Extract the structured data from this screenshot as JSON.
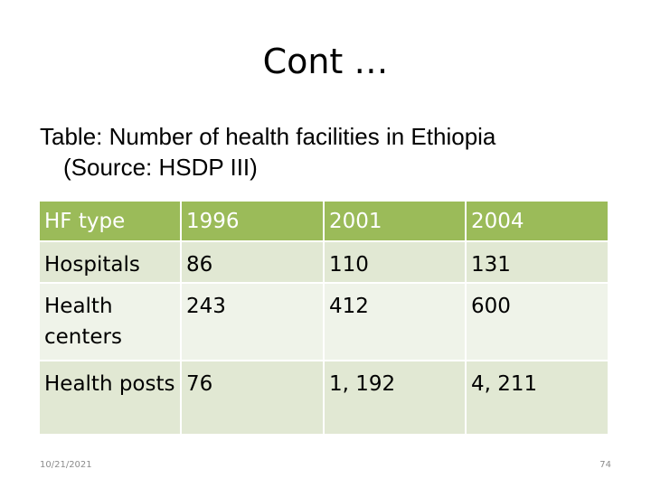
{
  "slide": {
    "title": "Cont …",
    "caption_line1": "Table: Number of health facilities in Ethiopia",
    "caption_line2": "(Source: HSDP III)"
  },
  "table": {
    "headers": [
      "HF type",
      "1996",
      "2001",
      "2004"
    ],
    "rows": [
      [
        "Hospitals",
        "86",
        "110",
        "131"
      ],
      [
        "Health centers",
        "243",
        "412",
        "600"
      ],
      [
        "Health posts",
        "76",
        "1, 192",
        "4, 211"
      ]
    ]
  },
  "footer": {
    "date": "10/21/2021",
    "page_number": "74"
  },
  "colors": {
    "header_bg": "#9bbb59",
    "row_dark": "#e1e8d3",
    "row_light": "#eff3e9"
  }
}
